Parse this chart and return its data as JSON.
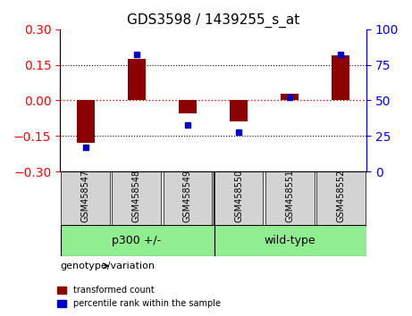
{
  "title": "GDS3598 / 1439255_s_at",
  "samples": [
    "GSM458547",
    "GSM458548",
    "GSM458549",
    "GSM458550",
    "GSM458551",
    "GSM458552"
  ],
  "transformed_count": [
    -0.18,
    0.175,
    -0.055,
    -0.09,
    0.03,
    0.19
  ],
  "percentile_rank": [
    17,
    82,
    33,
    28,
    52,
    82
  ],
  "groups": [
    {
      "label": "p300 +/-",
      "color": "#90EE90",
      "indices": [
        0,
        1,
        2
      ]
    },
    {
      "label": "wild-type",
      "color": "#90EE90",
      "indices": [
        3,
        4,
        5
      ]
    }
  ],
  "group_boundary": 3,
  "ylim_left": [
    -0.3,
    0.3
  ],
  "ylim_right": [
    0,
    100
  ],
  "yticks_left": [
    -0.3,
    -0.15,
    0,
    0.15,
    0.3
  ],
  "yticks_right": [
    0,
    25,
    50,
    75,
    100
  ],
  "hlines": [
    0.15,
    -0.15
  ],
  "bar_color": "#8B0000",
  "dot_color": "#0000CD",
  "background_color": "#FFFFFF",
  "label_bg_color": "#D3D3D3",
  "legend_red_label": "transformed count",
  "legend_blue_label": "percentile rank within the sample",
  "group_label": "genotype/variation"
}
